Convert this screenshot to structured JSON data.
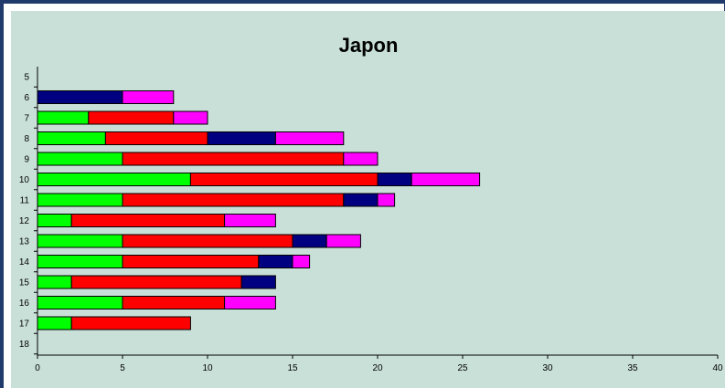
{
  "chart_data": {
    "type": "bar",
    "orientation": "horizontal",
    "stacked": true,
    "title": "Japon",
    "xlabel": "",
    "ylabel": "",
    "xlim": [
      0,
      40
    ],
    "x_ticks": [
      "0",
      "5",
      "10",
      "15",
      "20",
      "25",
      "30",
      "35",
      "40"
    ],
    "categories": [
      "5",
      "6",
      "7",
      "8",
      "9",
      "10",
      "11",
      "12",
      "13",
      "14",
      "15",
      "16",
      "17",
      "18"
    ],
    "series": [
      {
        "color": "#00ff00",
        "values": [
          0,
          0,
          3,
          4,
          5,
          9,
          5,
          2,
          5,
          5,
          2,
          5,
          2,
          0
        ]
      },
      {
        "color": "#ff0000",
        "values": [
          0,
          0,
          5,
          6,
          13,
          11,
          13,
          9,
          10,
          8,
          10,
          6,
          7,
          0
        ]
      },
      {
        "color": "#000080",
        "values": [
          0,
          5,
          0,
          4,
          0,
          2,
          2,
          0,
          2,
          2,
          2,
          0,
          0,
          0
        ]
      },
      {
        "color": "#ff00ff",
        "values": [
          0,
          3,
          2,
          4,
          2,
          4,
          1,
          3,
          2,
          1,
          0,
          3,
          0,
          0
        ]
      }
    ],
    "grid": false,
    "legend": "none",
    "background_color": "#c9e0d8",
    "frame_color": "#1f3a6b"
  }
}
